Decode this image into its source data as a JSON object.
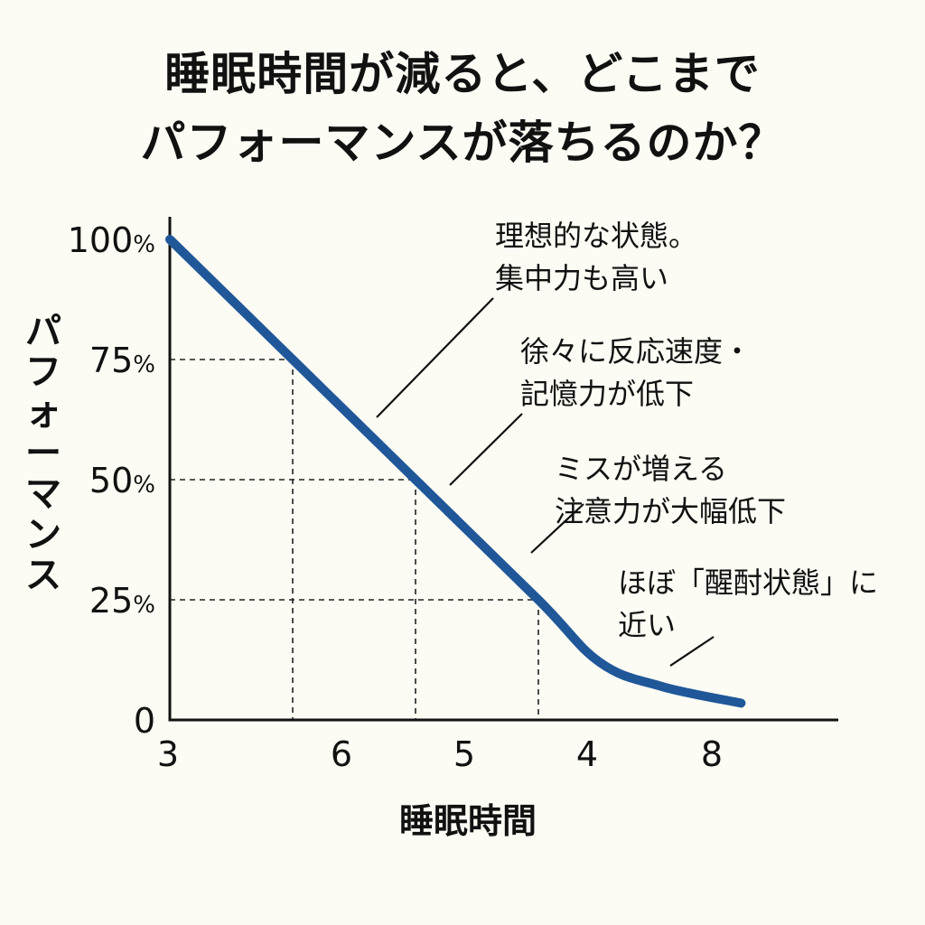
{
  "chart_data": {
    "type": "line",
    "title_lines": [
      "睡眠時間が減ると、どこまで",
      "パフォーマンスが落ちるのか？"
    ],
    "xlabel": "睡眠時間",
    "ylabel": "パフォーマンス",
    "x_ticks": [
      "3",
      "6",
      "5",
      "4",
      "8"
    ],
    "y_ticks": [
      {
        "value": 100,
        "num": "100",
        "pct": "%"
      },
      {
        "value": 75,
        "num": "75",
        "pct": "%"
      },
      {
        "value": 50,
        "num": "50",
        "pct": "%"
      },
      {
        "value": 25,
        "num": "25",
        "pct": "%"
      },
      {
        "value": 0,
        "num": "0",
        "pct": ""
      }
    ],
    "ylim": [
      0,
      100
    ],
    "grid": false,
    "reference_lines": [
      {
        "x_tick": "6",
        "y": 75
      },
      {
        "x_tick": "5",
        "y": 50
      },
      {
        "x_tick": "4",
        "y": 25
      }
    ],
    "series": [
      {
        "color": "#1f5799",
        "points": [
          {
            "x_pos": 0.0,
            "y": 100
          },
          {
            "x_pos": 1.0,
            "y": 75
          },
          {
            "x_pos": 2.0,
            "y": 50
          },
          {
            "x_pos": 3.0,
            "y": 25
          },
          {
            "x_pos": 3.5,
            "y": 12
          },
          {
            "x_pos": 4.0,
            "y": 7
          },
          {
            "x_pos": 4.65,
            "y": 3.5
          }
        ]
      }
    ],
    "annotations": [
      {
        "lines": [
          "理想的な状態。",
          "集中力も高い"
        ]
      },
      {
        "lines": [
          "徐々に反応速度・",
          "記憶力が低下"
        ]
      },
      {
        "lines": [
          "ミスが増える",
          "注意力が大幅低下"
        ]
      },
      {
        "lines": [
          "ほぼ「醒酎状態」に",
          "近い"
        ]
      }
    ]
  }
}
